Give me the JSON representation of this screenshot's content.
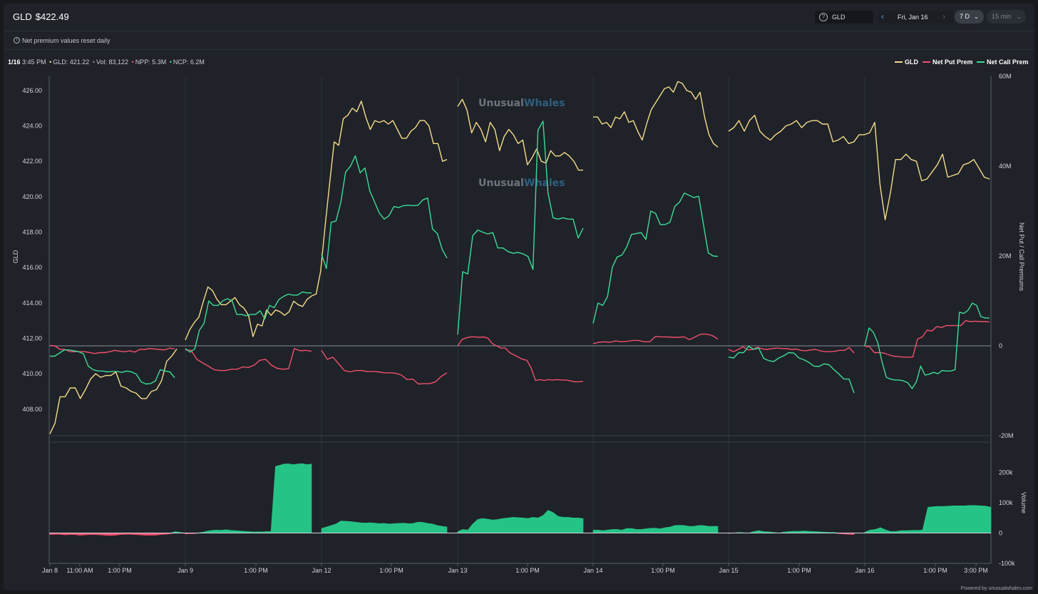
{
  "header": {
    "symbol": "GLD",
    "price": "$422.49",
    "search_value": "GLD",
    "date_label": "Fri, Jan 16",
    "range_label": "7 D",
    "interval_label": "15 min"
  },
  "notice": "Net premium values reset daily",
  "readout": {
    "date": "1/16",
    "time": "3:45 PM",
    "gld": "GLD: 421.22",
    "vol": "Vol: 83,122",
    "npp": "NPP: 5.3M",
    "ncp": "NCP: 6.2M"
  },
  "footer": "Powered by unusualwhales.com",
  "watermark": [
    "Unusual",
    "Whales"
  ],
  "colors": {
    "gld": "#f5dc8a",
    "put": "#f0506e",
    "call": "#3ddc97",
    "volume_up": "#25c486",
    "volume_down": "#f0506e"
  },
  "chart_data": [
    {
      "type": "line",
      "left_axis": {
        "label": "GLD",
        "ylim": [
          406.5,
          426.8
        ],
        "ticks": [
          "408.00",
          "410.00",
          "412.00",
          "414.00",
          "416.00",
          "418.00",
          "420.00",
          "422.00",
          "424.00",
          "426.00"
        ]
      },
      "right_axis": {
        "label": "Net Put / Call Premiums",
        "ylim": [
          -20,
          60
        ],
        "ticks": [
          "-20M",
          "0",
          "20M",
          "40M",
          "60M"
        ]
      },
      "x_axis": {
        "ticks": [
          "Jan 8",
          "11:00 AM",
          "1:00 PM",
          "Jan 9",
          "1:00 PM",
          "Jan 12",
          "1:00 PM",
          "Jan 13",
          "1:00 PM",
          "Jan 14",
          "1:00 PM",
          "Jan 15",
          "1:00 PM",
          "Jan 16",
          "1:00 PM",
          "3:00 PM"
        ]
      },
      "legend": "top-right",
      "series": [
        {
          "name": "GLD",
          "axis": "left",
          "segments": [
            [
              406.6,
              407.2,
              408.7,
              408.7,
              409.2,
              409.2,
              408.6,
              409.1,
              409.7,
              410.0,
              409.8,
              409.9,
              409.9,
              410.1,
              409.3,
              409.2,
              409.0,
              408.9,
              408.6,
              408.6,
              409.0,
              409.1,
              409.6,
              410.7,
              411.0,
              411.4
            ],
            [
              411.9,
              412.5,
              412.9,
              413.2,
              414.1,
              414.9,
              414.7,
              414.2,
              413.9,
              413.9,
              414.1,
              414.3,
              413.9,
              413.7,
              413.3,
              412.1,
              412.8,
              412.7,
              413.6,
              413.3,
              413.6,
              413.5,
              413.3,
              413.5,
              414.1,
              413.9,
              413.8,
              414.2,
              414.4,
              414.5,
              415.8,
              418.4,
              420.8,
              423.1,
              422.9,
              424.4,
              424.6,
              425.0,
              424.8,
              425.4,
              424.5,
              423.8,
              424.3,
              424.2,
              424.3,
              424.1,
              424.3,
              423.8,
              423.3,
              423.3,
              423.7,
              423.9,
              424.3,
              424.3,
              424.0,
              423.0,
              423.0,
              422.0,
              422.1
            ],
            [
              425.1,
              425.5,
              424.9,
              423.6,
              424.2,
              423.8,
              423.1,
              424.2,
              423.8,
              422.6,
              423.4,
              423.8,
              423.5,
              423.0,
              423.2,
              421.8,
              422.2,
              422.7,
              422.0,
              421.9,
              422.6,
              422.3,
              422.3,
              422.5,
              422.3,
              422.0,
              421.5,
              421.5
            ],
            [
              424.5,
              424.5,
              424.1,
              424.2,
              423.9,
              424.5,
              424.4,
              424.8,
              424.2,
              424.3,
              423.7,
              423.2,
              424.1,
              424.9,
              425.3,
              425.7,
              426.1,
              426.2,
              425.9,
              426.5,
              426.4,
              426.0,
              425.9,
              425.5,
              425.9,
              424.5,
              423.5,
              423.0,
              422.8
            ],
            [
              423.7,
              423.9,
              424.3,
              423.7,
              424.3,
              424.6,
              423.7,
              423.4,
              423.2,
              423.5,
              423.7,
              424.0,
              424.1,
              424.3,
              423.9,
              424.2,
              424.3,
              424.3,
              424.1,
              424.1,
              423.1,
              423.2,
              423.4,
              423.0,
              423.1,
              423.5,
              423.5,
              423.6,
              424.2,
              420.7,
              418.7,
              420.2,
              422.1,
              422.1,
              422.4,
              422.1,
              422.0,
              420.9,
              421.0,
              421.4,
              421.8,
              422.4,
              421.1,
              421.2,
              421.3,
              421.8,
              421.9,
              422.1,
              421.6,
              421.1,
              421.0
            ]
          ]
        },
        {
          "name": "Net Put Prem",
          "axis": "right",
          "segments": [
            [
              0.1,
              0.0,
              -0.8,
              -0.8,
              -1.3,
              -1.3,
              -1.3,
              -1.3,
              -1.5,
              -1.7,
              -1.5,
              -1.5,
              -1.3,
              -1.0,
              -1.2,
              -1.3,
              -1.1,
              -1.4,
              -0.8,
              -0.8,
              -0.6,
              -0.7,
              -0.8,
              -0.9,
              -0.5,
              -0.7
            ],
            [
              -0.9,
              -1.0,
              -3.0,
              -3.8,
              -4.5,
              -5.3,
              -5.5,
              -5.5,
              -5.2,
              -5.2,
              -4.7,
              -4.8,
              -4.3,
              -3.2,
              -3.0,
              -4.3,
              -5.0,
              -5.2,
              -5.1,
              -0.6,
              -1.1,
              -1.0,
              -1.2
            ],
            [
              -1.0,
              -3.0,
              -2.5,
              -4.0,
              -5.5,
              -5.8,
              -5.5,
              -5.5,
              -5.7,
              -5.7,
              -5.8,
              -6.0,
              -6.0,
              -6.1,
              -6.5,
              -7.5,
              -7.4,
              -8.5,
              -8.4,
              -8.4,
              -8.0,
              -6.8,
              -6.0
            ],
            [
              0.0,
              1.4,
              1.8,
              2.0,
              2.0,
              1.9,
              2.0,
              1.7,
              0.5,
              0.0,
              -0.5,
              -0.5,
              -1.5,
              -2.0,
              -2.5,
              -3.0,
              -3.2,
              -5.0,
              -7.7,
              -7.5,
              -7.7,
              -7.5,
              -7.6,
              -7.5,
              -7.6,
              -7.6,
              -7.8,
              -8.0,
              -8.0,
              -7.9
            ],
            [
              0.5,
              0.8,
              0.9,
              0.8,
              1.1,
              0.9,
              1.0,
              1.2,
              1.2,
              0.9,
              0.9,
              2.1,
              2.0,
              2.0,
              1.9,
              1.9,
              2.0,
              1.4,
              2.0,
              2.6,
              2.6,
              2.3,
              1.5
            ],
            [
              -0.8,
              -1.3,
              -0.8,
              -0.2,
              -0.9,
              -0.8,
              -0.3,
              -0.7,
              -0.8,
              -0.6,
              -0.5,
              -0.6,
              -0.6,
              -0.8,
              -0.7,
              -1.0,
              -1.1,
              -0.9,
              -0.8,
              -1.1,
              -1.3,
              -1.3,
              -1.2,
              -1.0,
              -1.0,
              -0.4,
              -1.6
            ],
            [
              -0.1,
              -0.2,
              -1.5,
              -1.5,
              -1.6,
              -2.0,
              -2.3,
              -2.4,
              -2.5,
              -2.5,
              -2.5,
              1.5,
              2.0,
              3.5,
              3.3,
              4.3,
              4.1,
              4.5,
              4.5,
              4.5,
              4.5,
              5.6,
              5.4,
              5.5,
              5.4,
              5.4,
              5.3
            ]
          ]
        },
        {
          "name": "Net Call Prem",
          "axis": "right",
          "segments": [
            [
              -2.3,
              -2.3,
              -1.6,
              -0.9,
              -0.9,
              -1.1,
              -1.3,
              -1.8,
              -4.5,
              -5.3,
              -5.6,
              -5.6,
              -5.8,
              -5.7,
              -5.7,
              -5.9,
              -5.6,
              -5.8,
              -6.3,
              -8.0,
              -8.5,
              -8.4,
              -7.8,
              -5.3,
              -5.6,
              -5.8,
              -7.1
            ],
            [
              -0.6,
              -1.4,
              -0.7,
              3.5,
              5.0,
              10.0,
              9.0,
              9.0,
              10.0,
              10.5,
              10.0,
              7.0,
              7.0,
              6.7,
              7.0,
              7.0,
              7.8,
              6.0,
              9.0,
              8.5,
              10.3,
              11.0,
              11.5,
              11.3,
              11.3,
              12.0,
              11.8,
              11.8
            ],
            [
              20.4,
              17.2,
              27.5,
              27.8,
              32.0,
              38.7,
              40.0,
              42.3,
              38.5,
              39.6,
              34.5,
              32.0,
              29.5,
              28.2,
              29.0,
              31.0,
              30.8,
              31.2,
              31.3,
              31.2,
              31.3,
              32.5,
              32.9,
              26.0,
              25.0,
              21.5,
              19.5
            ],
            [
              2.5,
              16.5,
              16.0,
              24.5,
              25.8,
              25.3,
              24.9,
              25.2,
              21.8,
              21.8,
              21.0,
              20.6,
              20.8,
              20.5,
              19.9,
              17.0,
              48.0,
              50.0,
              34.0,
              28.5,
              28.2,
              28.5,
              28.2,
              28.2,
              24.0,
              26.2
            ],
            [
              5.0,
              9.5,
              9.0,
              11.0,
              17.5,
              19.8,
              20.2,
              22.0,
              24.8,
              25.0,
              25.2,
              23.7,
              30.0,
              29.5,
              27.0,
              27.0,
              27.5,
              31.0,
              32.0,
              34.0,
              33.5,
              33.0,
              33.3,
              27.0,
              20.7,
              20.0,
              19.9
            ],
            [
              -2.5,
              -2.7,
              -1.5,
              -1.5,
              -0.1,
              -0.8,
              -0.5,
              -2.8,
              -3.3,
              -3.5,
              -2.7,
              -2.2,
              -1.5,
              -1.6,
              -2.7,
              -3.1,
              -3.7,
              -4.5,
              -4.6,
              -4.0,
              -4.2,
              -5.3,
              -6.3,
              -7.4,
              -7.4,
              -10.5
            ],
            [
              0.0,
              4.0,
              3.0,
              0.8,
              -3.5,
              -7.0,
              -7.4,
              -7.6,
              -7.6,
              -7.8,
              -8.2,
              -9.5,
              -8.0,
              -4.5,
              -6.5,
              -6.3,
              -5.9,
              -6.2,
              -5.5,
              -5.6,
              -5.6,
              -5.3,
              7.5,
              7.2,
              7.9,
              9.5,
              9.0,
              6.5,
              6.2,
              6.2
            ]
          ]
        }
      ]
    },
    {
      "type": "area",
      "y_axis": {
        "label": "Volume",
        "ylim": [
          -100000,
          300000
        ],
        "ticks": [
          "-100k",
          "0",
          "100k",
          "200k"
        ]
      },
      "segments": [
        [
          -5000,
          -4000,
          -4000,
          -6000,
          -5000,
          -5000,
          -7000,
          -6000,
          -5000,
          -5000,
          -6000,
          -7000,
          -8000,
          -7000,
          -5000,
          -4000,
          -4000,
          -5000,
          -6000,
          -7000,
          -7000,
          -7000,
          -5000,
          -4000,
          -2000,
          5000,
          2000,
          -1000
        ],
        [
          -3000,
          -2000,
          -2000,
          1000,
          3000,
          7000,
          9000,
          10000,
          9000,
          11000,
          9000,
          8000,
          7000,
          6000,
          5000,
          4000,
          4000,
          4000,
          5000,
          5000,
          220000,
          224000,
          228000,
          228000,
          226000,
          228000,
          229000,
          226000,
          228000
        ],
        [
          15000,
          20000,
          25000,
          30000,
          40000,
          39000,
          38000,
          36000,
          34000,
          33000,
          34000,
          33000,
          31000,
          32000,
          30000,
          31000,
          32000,
          33000,
          31000,
          32000,
          36000,
          35000,
          32000,
          30000,
          25000,
          22000,
          20000
        ],
        [
          5000,
          12000,
          10000,
          30000,
          45000,
          48000,
          46000,
          43000,
          45000,
          48000,
          50000,
          52000,
          51000,
          50000,
          48000,
          52000,
          50000,
          58000,
          75000,
          68000,
          55000,
          52000,
          52000,
          50000,
          50000,
          48000
        ],
        [
          10000,
          10000,
          8000,
          10000,
          12000,
          12000,
          10000,
          15000,
          15000,
          12000,
          12000,
          14000,
          16000,
          16000,
          14000,
          18000,
          20000,
          25000,
          26000,
          25000,
          22000,
          22000,
          25000,
          25000,
          22000,
          22000,
          22000
        ],
        [
          -1000,
          0,
          2000,
          1000,
          0,
          5000,
          8000,
          5000,
          4000,
          2000,
          0,
          3000,
          5000,
          6000,
          6000,
          7000,
          6000,
          5000,
          4000,
          3000,
          2000,
          2000,
          -2000,
          -3000,
          -4000,
          -5000
        ],
        [
          3000,
          10000,
          12000,
          18000,
          10000,
          5000,
          6000,
          8000,
          8000,
          9000,
          9000,
          10000,
          85000,
          87000,
          88000,
          88000,
          89000,
          90000,
          90000,
          90000,
          91000,
          91000,
          90000,
          89000,
          85000
        ]
      ]
    }
  ]
}
